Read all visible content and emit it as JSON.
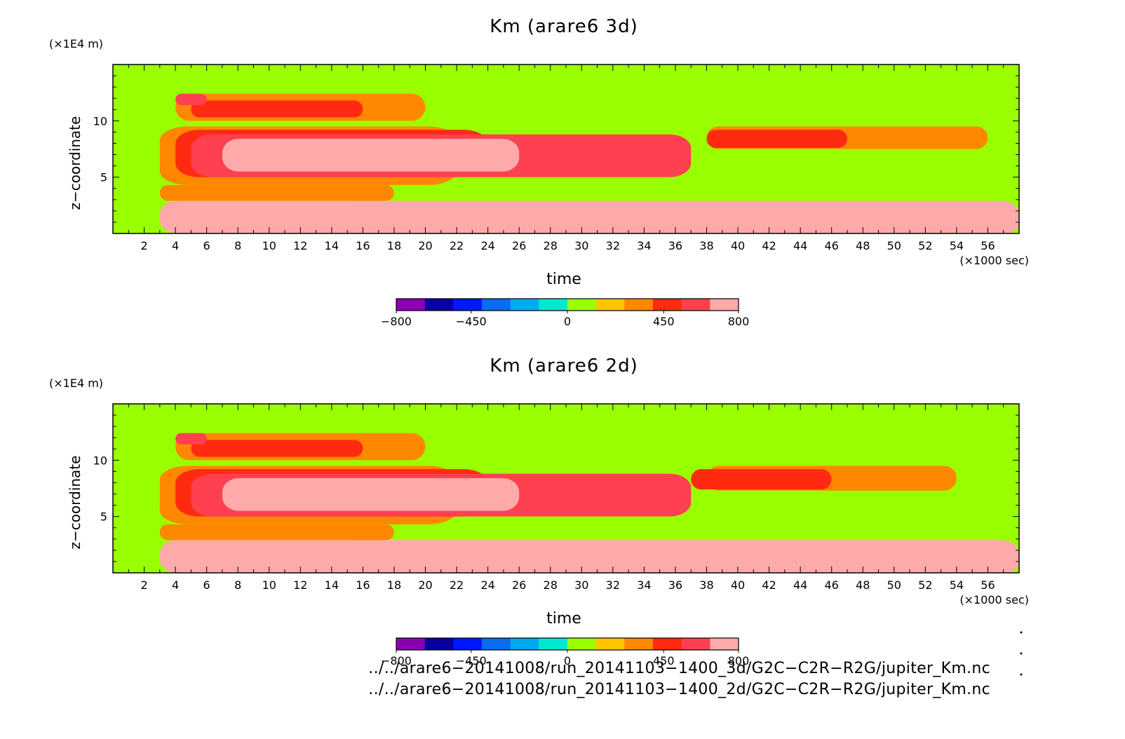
{
  "chart_data": [
    {
      "type": "heatmap",
      "title": "Km (arare6 3d)",
      "xlabel": "time",
      "x_unit": "(×1000 sec)",
      "ylabel": "z−coordinate",
      "y_unit": "(×1E4 m)",
      "xlim": [
        0,
        58
      ],
      "ylim": [
        0,
        15
      ],
      "x_ticks": [
        2,
        4,
        6,
        8,
        10,
        12,
        14,
        16,
        18,
        20,
        22,
        24,
        26,
        28,
        30,
        32,
        34,
        36,
        38,
        40,
        42,
        44,
        46,
        48,
        50,
        52,
        54,
        56
      ],
      "y_ticks": [
        5,
        10
      ],
      "colorbar": {
        "ticks": [
          -800,
          -450,
          0,
          450,
          800
        ],
        "colors": [
          "#8a00b0",
          "#0a00a0",
          "#0018ff",
          "#0a6cf0",
          "#00aaf0",
          "#00e8d0",
          "#9aff00",
          "#ffc600",
          "#ff8800",
          "#ff2a10",
          "#ff4050",
          "#ffaaaa"
        ]
      },
      "background_value": 50,
      "regions": [
        {
          "x": [
            3,
            58
          ],
          "y": [
            0,
            2.9
          ],
          "value": 700
        },
        {
          "x": [
            6,
            58
          ],
          "y": [
            0,
            2.2
          ],
          "value": 800
        },
        {
          "x": [
            3,
            18
          ],
          "y": [
            2.9,
            4.3
          ],
          "value": 300
        },
        {
          "x": [
            3,
            22
          ],
          "y": [
            4.3,
            9.5
          ],
          "value": 300
        },
        {
          "x": [
            38,
            56
          ],
          "y": [
            7.5,
            9.5
          ],
          "value": 300
        },
        {
          "x": [
            4,
            24
          ],
          "y": [
            5,
            9.2
          ],
          "value": 450
        },
        {
          "x": [
            38,
            47
          ],
          "y": [
            7.6,
            9.2
          ],
          "value": 450
        },
        {
          "x": [
            5,
            37
          ],
          "y": [
            5,
            8.8
          ],
          "value": 600
        },
        {
          "x": [
            7,
            26
          ],
          "y": [
            5.5,
            8.4
          ],
          "value": 700
        },
        {
          "x": [
            4,
            20
          ],
          "y": [
            10,
            12.4
          ],
          "value": 300
        },
        {
          "x": [
            5,
            16
          ],
          "y": [
            10.3,
            11.8
          ],
          "value": 450
        },
        {
          "x": [
            4,
            6
          ],
          "y": [
            11.4,
            12.4
          ],
          "value": 600
        }
      ]
    },
    {
      "type": "heatmap",
      "title": "Km (arare6 2d)",
      "xlabel": "time",
      "x_unit": "(×1000 sec)",
      "ylabel": "z−coordinate",
      "y_unit": "(×1E4 m)",
      "xlim": [
        0,
        58
      ],
      "ylim": [
        0,
        15
      ],
      "x_ticks": [
        2,
        4,
        6,
        8,
        10,
        12,
        14,
        16,
        18,
        20,
        22,
        24,
        26,
        28,
        30,
        32,
        34,
        36,
        38,
        40,
        42,
        44,
        46,
        48,
        50,
        52,
        54,
        56
      ],
      "y_ticks": [
        5,
        10
      ],
      "colorbar": {
        "ticks": [
          -800,
          -450,
          0,
          450,
          800
        ],
        "colors": [
          "#8a00b0",
          "#0a00a0",
          "#0018ff",
          "#0a6cf0",
          "#00aaf0",
          "#00e8d0",
          "#9aff00",
          "#ffc600",
          "#ff8800",
          "#ff2a10",
          "#ff4050",
          "#ffaaaa"
        ]
      },
      "background_value": 50,
      "regions": [
        {
          "x": [
            3,
            58
          ],
          "y": [
            0,
            2.9
          ],
          "value": 700
        },
        {
          "x": [
            9,
            58
          ],
          "y": [
            0,
            2.1
          ],
          "value": 800
        },
        {
          "x": [
            3,
            18
          ],
          "y": [
            2.9,
            4.3
          ],
          "value": 300
        },
        {
          "x": [
            3,
            22
          ],
          "y": [
            4.3,
            9.5
          ],
          "value": 300
        },
        {
          "x": [
            38,
            54
          ],
          "y": [
            7.3,
            9.5
          ],
          "value": 300
        },
        {
          "x": [
            4,
            24
          ],
          "y": [
            5,
            9.2
          ],
          "value": 450
        },
        {
          "x": [
            37,
            46
          ],
          "y": [
            7.4,
            9.2
          ],
          "value": 450
        },
        {
          "x": [
            5,
            37
          ],
          "y": [
            5,
            8.8
          ],
          "value": 600
        },
        {
          "x": [
            7,
            26
          ],
          "y": [
            5.5,
            8.4
          ],
          "value": 700
        },
        {
          "x": [
            4,
            20
          ],
          "y": [
            10,
            12.4
          ],
          "value": 300
        },
        {
          "x": [
            5,
            16
          ],
          "y": [
            10.3,
            11.8
          ],
          "value": 450
        },
        {
          "x": [
            4,
            6
          ],
          "y": [
            11.4,
            12.4
          ],
          "value": 600
        }
      ]
    }
  ],
  "file_paths": [
    "../../arare6−20141008/run_20141103−1400_3d/G2C−C2R−R2G/jupiter_Km.nc",
    "../../arare6−20141008/run_20141103−1400_2d/G2C−C2R−R2G/jupiter_Km.nc"
  ]
}
